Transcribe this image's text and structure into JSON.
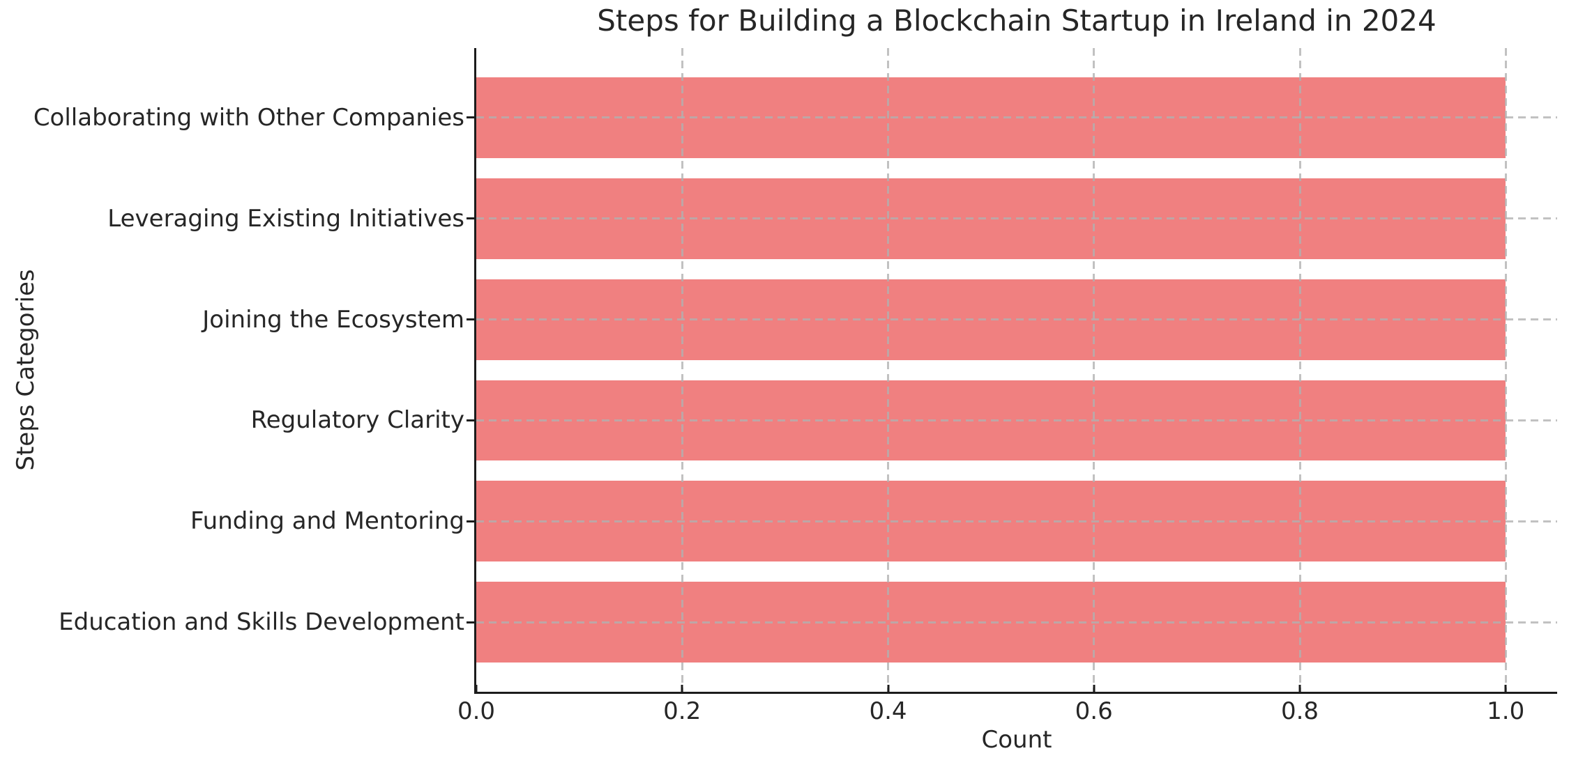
{
  "figure": {
    "background": "#ffffff",
    "text_color": "#262626",
    "spine_color": "#1c1c1c",
    "grid_color": "#b0b0b0"
  },
  "chart_data": {
    "type": "bar",
    "orientation": "horizontal",
    "title": "Steps for Building a Blockchain Startup in Ireland in 2024",
    "xlabel": "Count",
    "ylabel": "Steps Categories",
    "categories": [
      "Collaborating with Other Companies",
      "Leveraging Existing Initiatives",
      "Joining the Ecosystem",
      "Regulatory Clarity",
      "Funding and Mentoring",
      "Education and Skills Development"
    ],
    "values": [
      1.0,
      1.0,
      1.0,
      1.0,
      1.0,
      1.0
    ],
    "xtick_labels": [
      "0.0",
      "0.2",
      "0.4",
      "0.6",
      "0.8",
      "1.0"
    ],
    "xtick_values": [
      0.0,
      0.2,
      0.4,
      0.6,
      0.8,
      1.0
    ],
    "xlim": [
      0,
      1.05
    ],
    "bar_color": "#F08080",
    "bar_height_fraction": 0.8,
    "grid": {
      "style": "dashed",
      "axes": "both",
      "above_bars": true
    },
    "legend": "none"
  }
}
